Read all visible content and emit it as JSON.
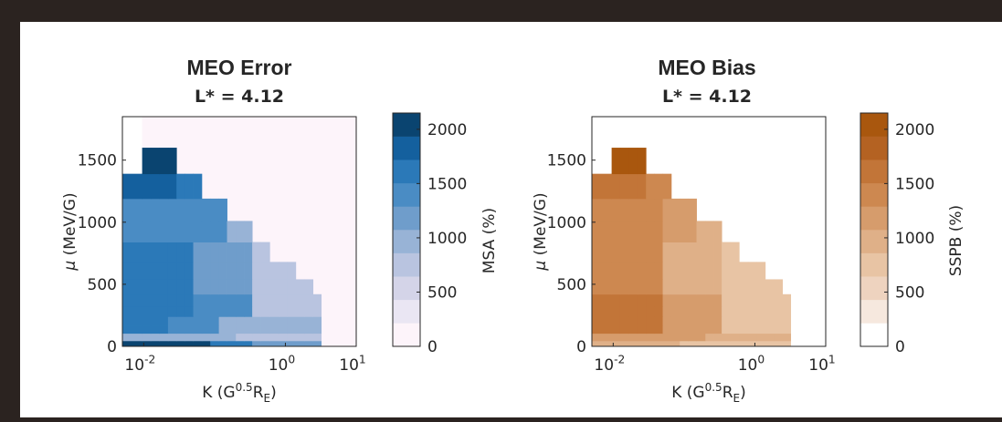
{
  "chart_data": [
    {
      "type": "heatmap",
      "title": "MEO Error",
      "subtitle": "L* = 4.12",
      "xlabel": "K (G^0.5 R_E)",
      "ylabel": "μ (MeV/G)",
      "xscale": "log",
      "xlim": [
        0.005,
        10
      ],
      "ylim": [
        0,
        1850
      ],
      "x_ticks": [
        0.01,
        1,
        10
      ],
      "x_tick_labels": {
        "base": "10",
        "exps": [
          "-2",
          "0",
          "1"
        ]
      },
      "y_ticks": [
        0,
        500,
        1000,
        1500
      ],
      "colorbar": {
        "label": "MSA (%)",
        "range": [
          0,
          2150
        ],
        "ticks": [
          0,
          500,
          1000,
          1500,
          2000
        ],
        "levels": 10,
        "colors": [
          "#fdf4fa",
          "#eae6f3",
          "#d4d4e8",
          "#b9c4e0",
          "#98b3d6",
          "#6f9dcb",
          "#4a8cc4",
          "#2b79b8",
          "#14609e",
          "#0a4470"
        ]
      },
      "background": "#fdf4fa"
    },
    {
      "type": "heatmap",
      "title": "MEO Bias",
      "subtitle": "L* = 4.12",
      "xlabel": "K (G^0.5 R_E)",
      "ylabel": "μ (MeV/G)",
      "xscale": "log",
      "xlim": [
        0.005,
        10
      ],
      "ylim": [
        0,
        1850
      ],
      "x_ticks": [
        0.01,
        1,
        10
      ],
      "x_tick_labels": {
        "base": "10",
        "exps": [
          "-2",
          "0",
          "1"
        ]
      },
      "y_ticks": [
        0,
        500,
        1000,
        1500
      ],
      "colorbar": {
        "label": "SSPB (%)",
        "range": [
          0,
          2150
        ],
        "ticks": [
          0,
          500,
          1000,
          1500,
          2000
        ],
        "levels": 10,
        "colors": [
          "#ffffff",
          "#f6e8de",
          "#eed3bf",
          "#e8c4a4",
          "#dfb088",
          "#d69c6c",
          "#cd8850",
          "#c27538",
          "#b46222",
          "#a9570e"
        ]
      },
      "background": "#ffffff"
    }
  ]
}
